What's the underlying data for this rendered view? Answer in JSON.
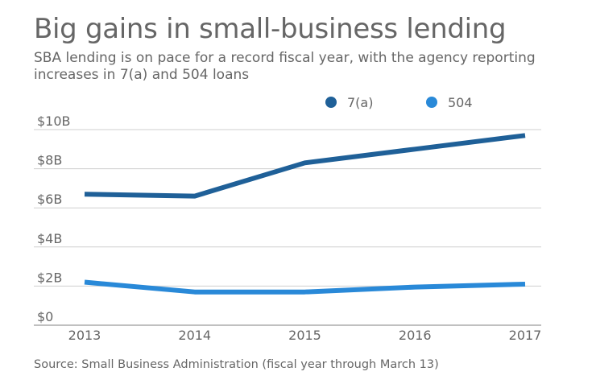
{
  "title": "Big gains in small-business lending",
  "subtitle": "SBA lending is on pace for a record fiscal year, with the agency reporting increases in 7(a) and 504 loans",
  "source": "Source: Small Business Administration (fiscal year through March 13)",
  "chart_data": {
    "type": "line",
    "x": [
      "2013",
      "2014",
      "2015",
      "2016",
      "2017"
    ],
    "yticks": [
      "$0",
      "$2B",
      "$4B",
      "$6B",
      "$8B",
      "$10B"
    ],
    "ylim": [
      0,
      10
    ],
    "grid": true,
    "legend_position": "top-right",
    "series": [
      {
        "name": "7(a)",
        "color": "#1f6098",
        "values": [
          6.7,
          6.6,
          8.3,
          9.0,
          9.7
        ]
      },
      {
        "name": "504",
        "color": "#2989d8",
        "values": [
          2.2,
          1.7,
          1.7,
          1.95,
          2.1
        ]
      }
    ]
  }
}
